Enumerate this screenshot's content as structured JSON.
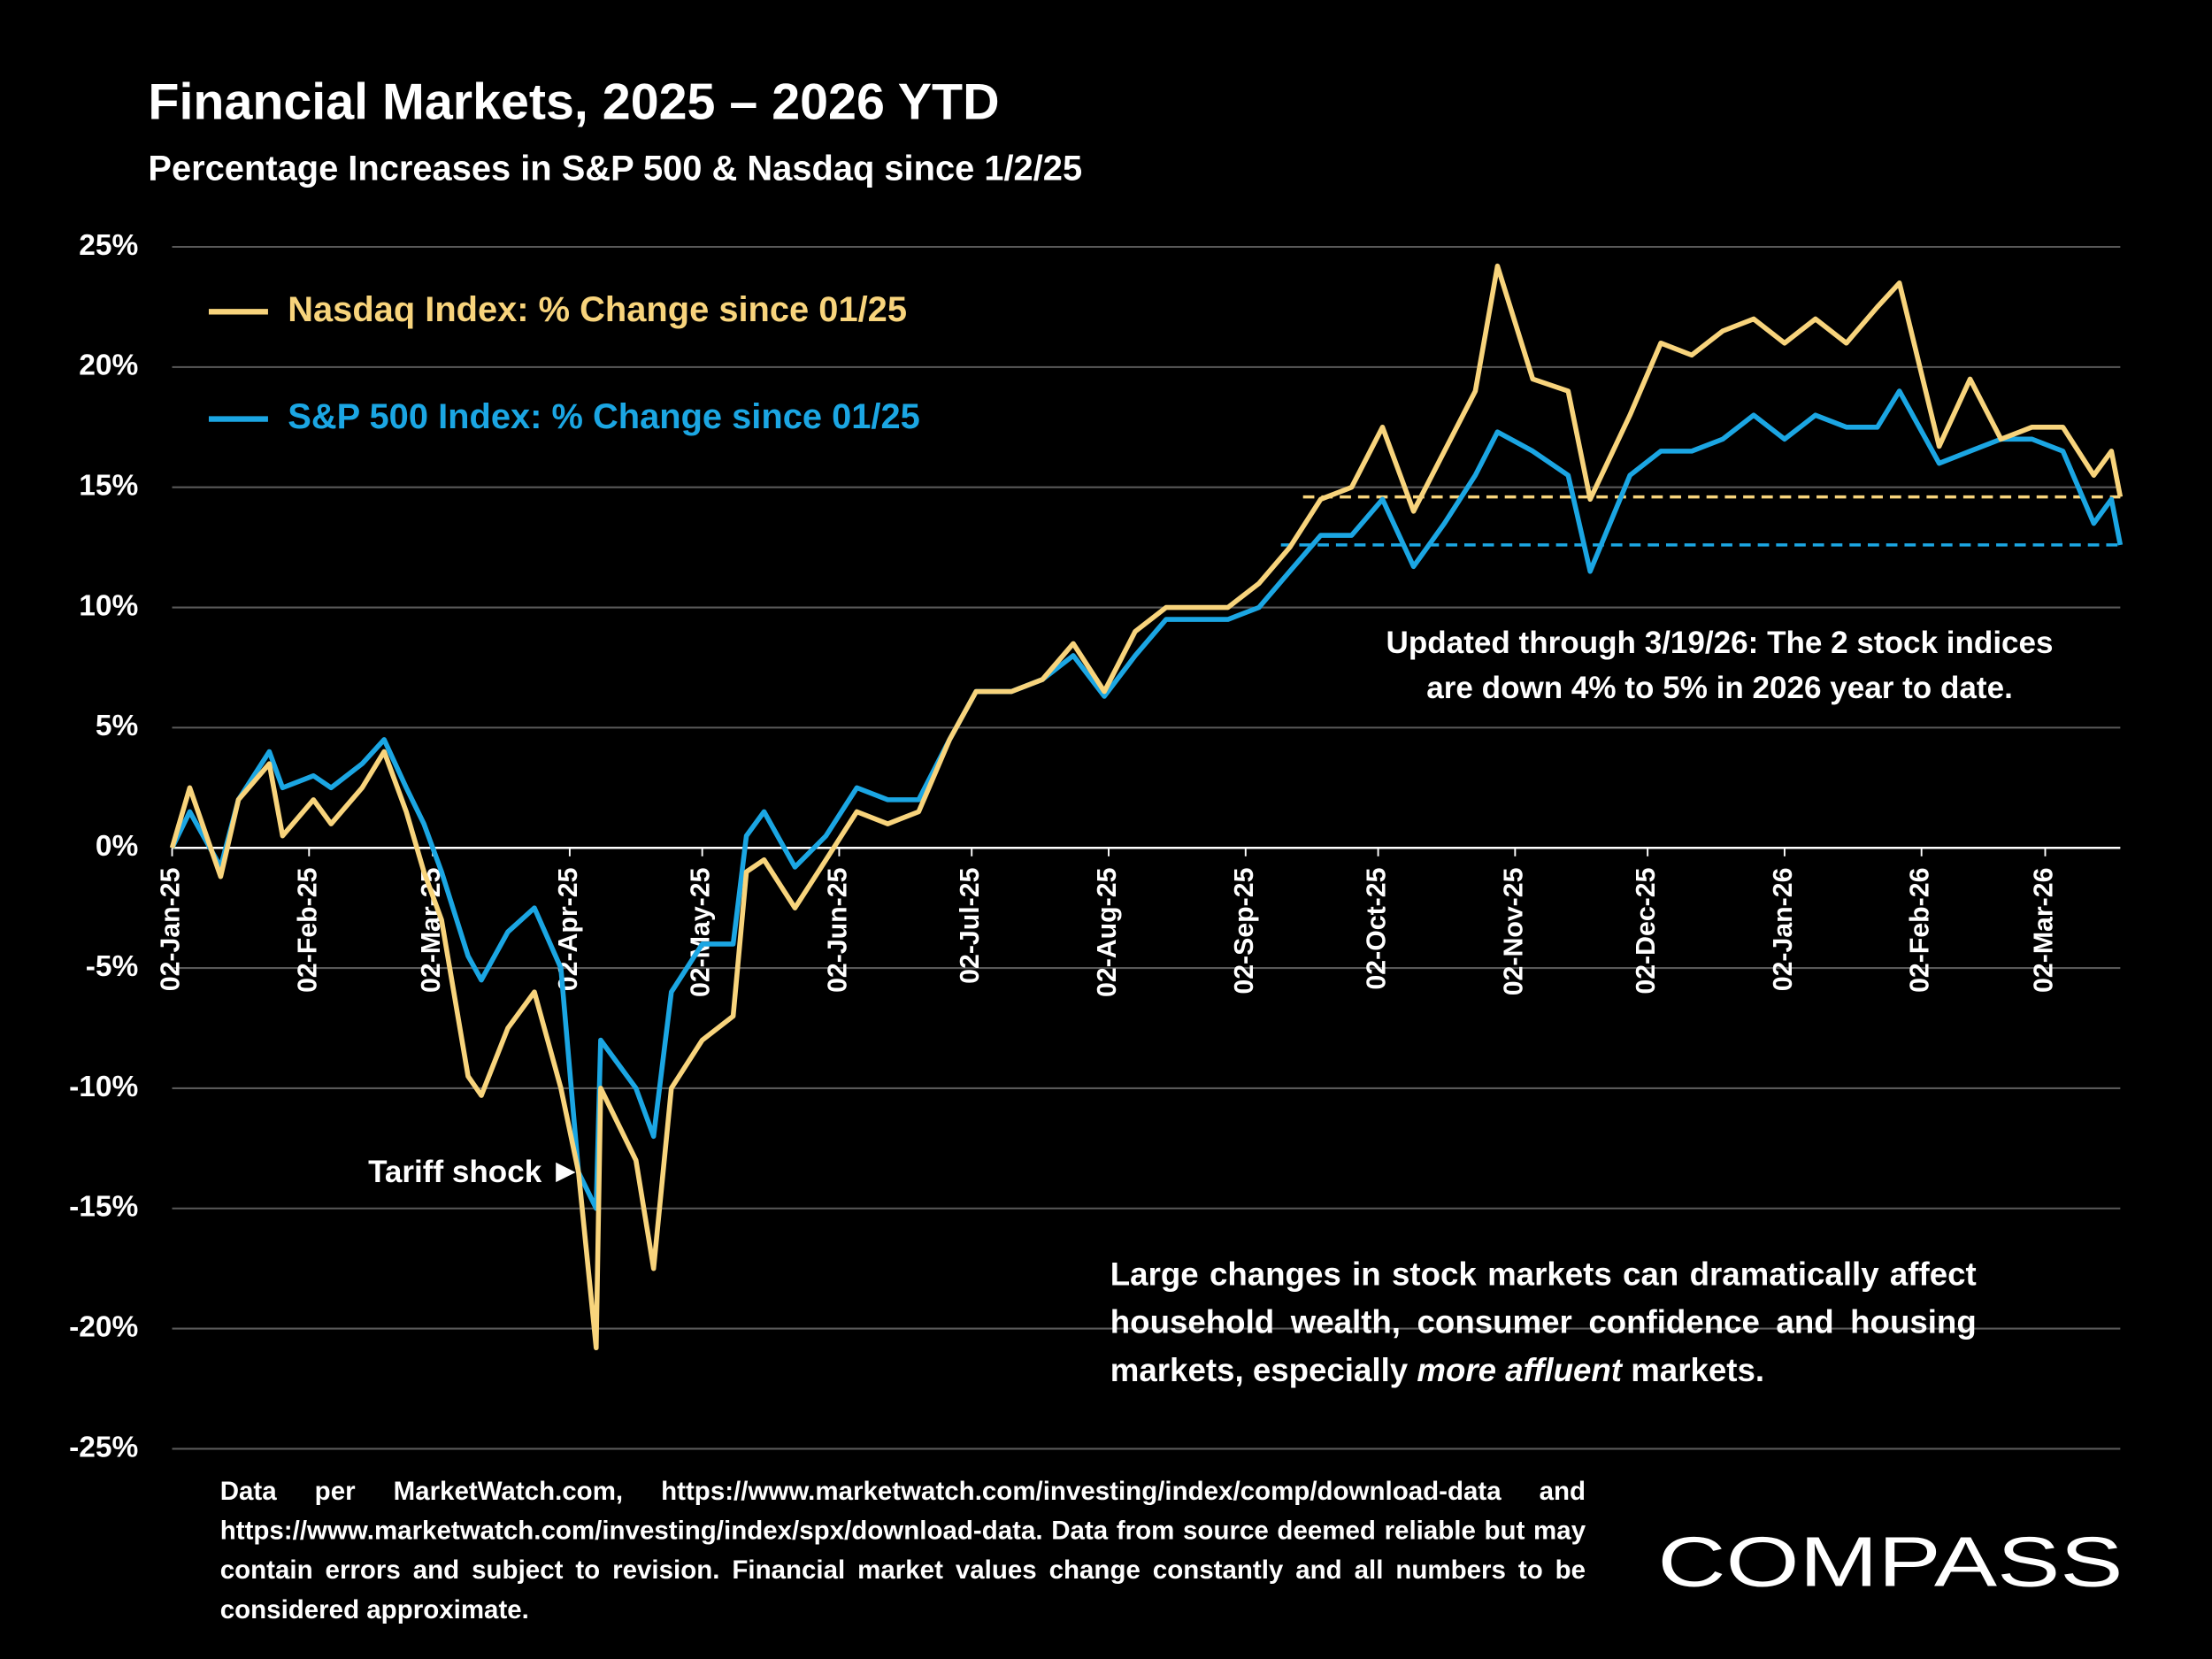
{
  "chart_data": {
    "type": "line",
    "title": "Financial Markets, 2025 – 2026 YTD",
    "subtitle": "Percentage Increases in S&P 500 & Nasdaq since 1/2/25",
    "x": [
      "2025-01-02",
      "2025-01-06",
      "2025-01-13",
      "2025-01-17",
      "2025-01-24",
      "2025-01-27",
      "2025-02-03",
      "2025-02-07",
      "2025-02-14",
      "2025-02-19",
      "2025-02-24",
      "2025-02-28",
      "2025-03-04",
      "2025-03-10",
      "2025-03-13",
      "2025-03-19",
      "2025-03-25",
      "2025-03-31",
      "2025-04-04",
      "2025-04-08",
      "2025-04-09",
      "2025-04-17",
      "2025-04-21",
      "2025-04-25",
      "2025-05-02",
      "2025-05-09",
      "2025-05-12",
      "2025-05-16",
      "2025-05-23",
      "2025-05-30",
      "2025-06-06",
      "2025-06-13",
      "2025-06-20",
      "2025-06-27",
      "2025-07-03",
      "2025-07-11",
      "2025-07-18",
      "2025-07-25",
      "2025-08-01",
      "2025-08-08",
      "2025-08-15",
      "2025-08-22",
      "2025-08-29",
      "2025-09-05",
      "2025-09-12",
      "2025-09-19",
      "2025-09-26",
      "2025-10-03",
      "2025-10-10",
      "2025-10-17",
      "2025-10-24",
      "2025-10-29",
      "2025-11-06",
      "2025-11-14",
      "2025-11-19",
      "2025-11-28",
      "2025-12-05",
      "2025-12-12",
      "2025-12-19",
      "2025-12-26",
      "2026-01-02",
      "2026-01-09",
      "2026-01-16",
      "2026-01-23",
      "2026-01-28",
      "2026-02-06",
      "2026-02-13",
      "2026-02-20",
      "2026-02-27",
      "2026-03-06",
      "2026-03-13",
      "2026-03-17",
      "2026-03-19"
    ],
    "series": [
      {
        "name": "Nasdaq Index: % Change since 01/25",
        "color": "#f8d47c",
        "values": [
          0,
          2.5,
          -1.2,
          2,
          3.5,
          0.5,
          2,
          1,
          2.5,
          4,
          1.5,
          -1,
          -3,
          -9.5,
          -10.3,
          -7.5,
          -6,
          -10,
          -13.5,
          -20.8,
          -10,
          -13,
          -17.5,
          -10,
          -8,
          -7,
          -1,
          -0.5,
          -2.5,
          -0.5,
          1.5,
          1,
          1.5,
          4.5,
          6.5,
          6.5,
          7,
          8.5,
          6.5,
          9,
          10,
          10,
          10,
          11,
          12.5,
          14.5,
          15,
          17.5,
          14,
          16.5,
          19,
          24.2,
          19.5,
          19,
          14.5,
          18,
          21,
          20.5,
          21.5,
          22,
          21,
          22,
          21,
          22.5,
          23.5,
          16.7,
          19.5,
          17,
          17.5,
          17.5,
          15.5,
          16.5,
          14.6
        ]
      },
      {
        "name": "S&P 500 Index: % Change since 01/25",
        "color": "#1ba6e3",
        "values": [
          0,
          1.5,
          -0.8,
          2,
          4,
          2.5,
          3,
          2.5,
          3.5,
          4.5,
          2.5,
          1,
          -1,
          -4.5,
          -5.5,
          -3.5,
          -2.5,
          -5,
          -13.5,
          -15,
          -8,
          -10,
          -12,
          -6,
          -4,
          -4,
          0.5,
          1.5,
          -0.8,
          0.5,
          2.5,
          2,
          2,
          4.5,
          6.5,
          6.5,
          7,
          8,
          6.3,
          8,
          9.5,
          9.5,
          9.5,
          10,
          11.5,
          13,
          13,
          14.5,
          11.7,
          13.5,
          15.5,
          17.3,
          16.5,
          15.5,
          11.5,
          15.5,
          16.5,
          16.5,
          17,
          18,
          17,
          18,
          17.5,
          17.5,
          19,
          16,
          16.5,
          17,
          17,
          16.5,
          13.5,
          14.5,
          12.6
        ]
      }
    ],
    "reference_lines": [
      {
        "y": 14.6,
        "x0": "2025-09-15",
        "color": "#f8d47c"
      },
      {
        "y": 12.6,
        "x0": "2025-09-10",
        "color": "#1ba6e3"
      }
    ],
    "xlim": [
      "2025-01-02",
      "2026-03-19"
    ],
    "xticks": [
      {
        "value": "2025-01-02",
        "label": "02-Jan-25"
      },
      {
        "value": "2025-02-02",
        "label": "02-Feb-25"
      },
      {
        "value": "2025-03-02",
        "label": "02-Mar-25"
      },
      {
        "value": "2025-04-02",
        "label": "02-Apr-25"
      },
      {
        "value": "2025-05-02",
        "label": "02-May-25"
      },
      {
        "value": "2025-06-02",
        "label": "02-Jun-25"
      },
      {
        "value": "2025-07-02",
        "label": "02-Jul-25"
      },
      {
        "value": "2025-08-02",
        "label": "02-Aug-25"
      },
      {
        "value": "2025-09-02",
        "label": "02-Sep-25"
      },
      {
        "value": "2025-10-02",
        "label": "02-Oct-25"
      },
      {
        "value": "2025-11-02",
        "label": "02-Nov-25"
      },
      {
        "value": "2025-12-02",
        "label": "02-Dec-25"
      },
      {
        "value": "2026-01-02",
        "label": "02-Jan-26"
      },
      {
        "value": "2026-02-02",
        "label": "02-Feb-26"
      },
      {
        "value": "2026-03-02",
        "label": "02-Mar-26"
      }
    ],
    "ylim": [
      -25,
      25
    ],
    "yticks": [
      {
        "value": 25,
        "label": "25%"
      },
      {
        "value": 20,
        "label": "20%"
      },
      {
        "value": 15,
        "label": "15%"
      },
      {
        "value": 10,
        "label": "10%"
      },
      {
        "value": 5,
        "label": "5%"
      },
      {
        "value": 0,
        "label": "0%"
      },
      {
        "value": -5,
        "label": "-5%"
      },
      {
        "value": -10,
        "label": "-10%"
      },
      {
        "value": -15,
        "label": "-15%"
      },
      {
        "value": -20,
        "label": "-20%"
      },
      {
        "value": -25,
        "label": "-25%"
      }
    ],
    "grid": true,
    "legend": "upper left",
    "annotation_update": [
      "Updated through 3/19/26:  The 2 stock indices",
      "are down 4% to 5% in 2026 year to date."
    ],
    "annotation_tariff": "Tariff shock",
    "note": [
      "Large changes in stock markets can dramatically affect household wealth, consumer confidence and housing markets, especially ",
      "more affluent",
      " markets."
    ],
    "source": "Data per MarketWatch.com, https://www.marketwatch.com/investing/index/comp/download-data and https://www.marketwatch.com/investing/index/spx/download-data. Data from source deemed reliable but may contain errors and subject to revision. Financial market values change constantly and all numbers to be considered approximate.",
    "logo": "COMPASS"
  }
}
